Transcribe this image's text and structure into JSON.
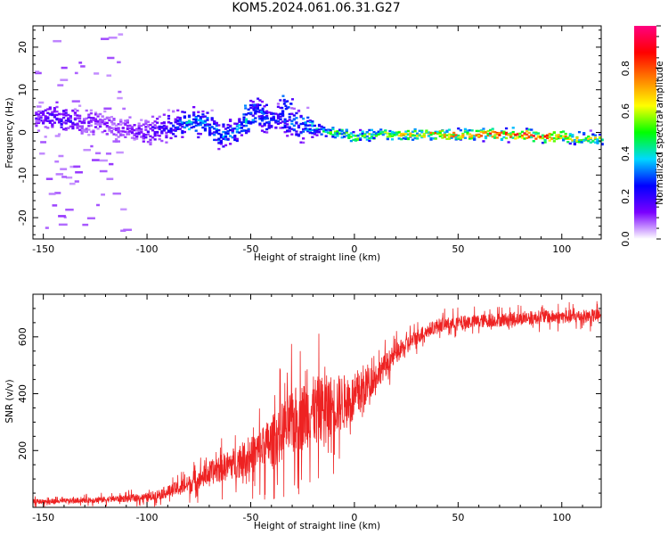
{
  "title": "KOM5.2024.061.06.31.G27",
  "chart_data": [
    {
      "type": "heatmap",
      "xlabel": "Height of straight line (km)",
      "ylabel": "Frequency (Hz)",
      "xlim": [
        -155,
        119
      ],
      "ylim": [
        -25,
        25
      ],
      "xticks": [
        -150,
        -100,
        -50,
        0,
        50,
        100
      ],
      "yticks": [
        -20,
        -10,
        0,
        10,
        20
      ],
      "colorbar": {
        "label": "Normalized spectral amplitude",
        "range": [
          0,
          1
        ],
        "ticks": [
          0.0,
          0.2,
          0.4,
          0.6,
          0.8
        ],
        "colormap": [
          "#ffffff",
          "#7a00ff",
          "#0000ff",
          "#00d8ff",
          "#00ff00",
          "#ffff00",
          "#ff8000",
          "#ff0000",
          "#ff0080"
        ]
      },
      "ridge": {
        "x": [
          -152,
          -145,
          -135,
          -125,
          -115,
          -108,
          -100,
          -90,
          -80,
          -72,
          -65,
          -58,
          -52,
          -48,
          -42,
          -36,
          -30,
          -20,
          -10,
          0,
          10,
          20,
          30,
          40,
          50,
          60,
          70,
          80,
          90,
          100,
          110,
          118
        ],
        "freq": [
          3,
          3.5,
          2.5,
          2.5,
          1,
          0.5,
          0,
          1.5,
          2,
          2,
          -1,
          0.5,
          3,
          5,
          2,
          4,
          2,
          1,
          0,
          -1,
          -0.5,
          -0.5,
          -0.5,
          -0.5,
          -0.5,
          -0.5,
          -0.5,
          -0.5,
          -1,
          -1,
          -1.5,
          -1.5
        ],
        "amplitude": [
          0.15,
          0.2,
          0.15,
          0.12,
          0.1,
          0.12,
          0.15,
          0.2,
          0.35,
          0.3,
          0.3,
          0.3,
          0.35,
          0.3,
          0.25,
          0.25,
          0.3,
          0.35,
          0.5,
          0.5,
          0.55,
          0.6,
          0.6,
          0.7,
          0.7,
          0.7,
          0.75,
          0.8,
          0.75,
          0.7,
          0.6,
          0.55
        ]
      }
    },
    {
      "type": "line",
      "xlabel": "Height of straight line (km)",
      "ylabel": "SNR (v/v)",
      "xlim": [
        -155,
        119
      ],
      "ylim": [
        0,
        750
      ],
      "xticks": [
        -150,
        -100,
        -50,
        0,
        50,
        100
      ],
      "yticks": [
        200,
        400,
        600
      ],
      "color": "#ee2222",
      "x": [
        -155,
        -140,
        -120,
        -100,
        -90,
        -80,
        -70,
        -60,
        -50,
        -40,
        -30,
        -20,
        -10,
        0,
        10,
        20,
        30,
        40,
        50,
        60,
        70,
        80,
        90,
        100,
        110,
        119
      ],
      "y": [
        20,
        22,
        28,
        35,
        55,
        80,
        120,
        150,
        180,
        230,
        300,
        340,
        360,
        380,
        460,
        540,
        600,
        640,
        650,
        655,
        660,
        665,
        670,
        670,
        672,
        675
      ],
      "noise_amplitude": [
        15,
        15,
        18,
        25,
        35,
        50,
        70,
        90,
        110,
        150,
        200,
        200,
        180,
        150,
        80,
        60,
        45,
        40,
        40,
        40,
        40,
        40,
        40,
        40,
        40,
        40
      ]
    }
  ]
}
